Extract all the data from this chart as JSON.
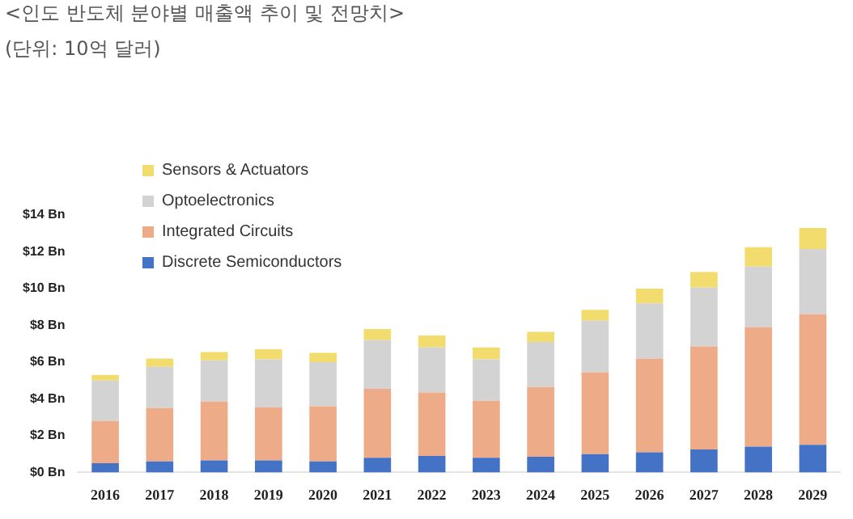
{
  "chart_data": {
    "type": "bar",
    "title": "<인도 반도체 분야별 매출액 추이 및 전망치>",
    "subtitle": "(단위: 10억 달러)",
    "stacked": true,
    "grid": false,
    "legend": "top left",
    "categories": [
      "2016",
      "2017",
      "2018",
      "2019",
      "2020",
      "2021",
      "2022",
      "2023",
      "2024",
      "2025",
      "2026",
      "2027",
      "2028",
      "2029"
    ],
    "series": [
      {
        "name": "Discrete Semiconductors",
        "color": "#4472c4",
        "values": [
          0.5,
          0.6,
          0.65,
          0.65,
          0.6,
          0.8,
          0.9,
          0.8,
          0.85,
          1.0,
          1.1,
          1.25,
          1.4,
          1.5
        ]
      },
      {
        "name": "Integrated Circuits",
        "color": "#eeab88",
        "values": [
          2.3,
          2.9,
          3.2,
          2.9,
          3.0,
          3.75,
          3.45,
          3.1,
          3.8,
          4.45,
          5.1,
          5.6,
          6.5,
          7.1
        ]
      },
      {
        "name": "Optoelectronics",
        "color": "#d3d3d3",
        "values": [
          2.2,
          2.25,
          2.25,
          2.6,
          2.4,
          2.65,
          2.45,
          2.25,
          2.45,
          2.8,
          3.0,
          3.2,
          3.3,
          3.55
        ]
      },
      {
        "name": "Sensors & Actuators",
        "color": "#f2dc6e",
        "values": [
          0.3,
          0.45,
          0.45,
          0.55,
          0.5,
          0.6,
          0.65,
          0.65,
          0.55,
          0.6,
          0.8,
          0.85,
          1.05,
          1.15
        ]
      }
    ],
    "ylim": [
      0,
      14
    ],
    "yticks": [
      {
        "value": 0,
        "label": "$0 Bn"
      },
      {
        "value": 2,
        "label": "$2 Bn"
      },
      {
        "value": 4,
        "label": "$4 Bn"
      },
      {
        "value": 6,
        "label": "$6 Bn"
      },
      {
        "value": 8,
        "label": "$8 Bn"
      },
      {
        "value": 10,
        "label": "$10 Bn"
      },
      {
        "value": 12,
        "label": "$12 Bn"
      },
      {
        "value": 14,
        "label": "$14 Bn"
      }
    ]
  }
}
